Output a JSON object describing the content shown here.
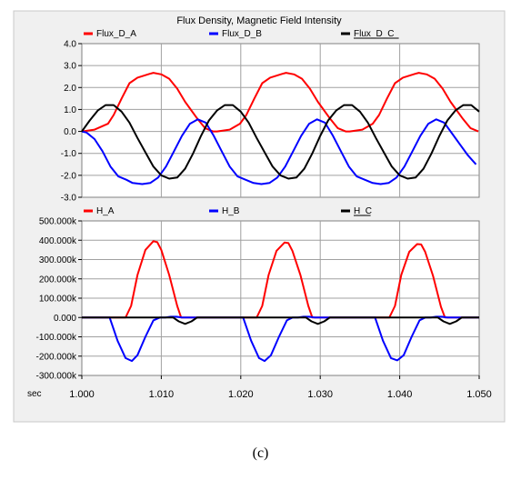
{
  "window": {
    "title": "Flux Density,  Magnetic Field Intensity",
    "x_unit": "sec",
    "caption": "(c)"
  },
  "colors": {
    "frame_bg": "#f0f0f0",
    "panel_bg": "#ffffff",
    "grid": "#a0a0a0",
    "phase_a": "#ff0000",
    "phase_b": "#0000ff",
    "phase_c": "#000000"
  },
  "chart_data": [
    {
      "type": "line",
      "title": "",
      "xlabel": "sec",
      "ylabel": "",
      "xlim": [
        1.0,
        1.05
      ],
      "ylim": [
        -3.0,
        4.0
      ],
      "yticks": [
        "4.0",
        "3.0",
        "2.0",
        "1.0",
        "0.0",
        "-1.0",
        "-2.0",
        "-3.0"
      ],
      "xticks": [
        "1.000",
        "1.010",
        "1.020",
        "1.030",
        "1.040",
        "1.050"
      ],
      "grid": true,
      "legend": "top",
      "series": [
        {
          "name": "Flux_D_A",
          "color": "#ff0000",
          "x": [
            1.0,
            1.0016,
            1.0033,
            1.004,
            1.005,
            1.006,
            1.007,
            1.0085,
            1.009,
            1.01,
            1.011,
            1.012,
            1.013,
            1.0145,
            1.0155,
            1.0165,
            1.017,
            1.0186,
            1.0199,
            1.0207,
            1.0217,
            1.0227,
            1.0237,
            1.0252,
            1.0257,
            1.0267,
            1.0277,
            1.0287,
            1.0297,
            1.0312,
            1.0322,
            1.0332,
            1.0337,
            1.0353,
            1.0366,
            1.0374,
            1.0384,
            1.0394,
            1.0404,
            1.0419,
            1.0424,
            1.0434,
            1.0444,
            1.0454,
            1.0464,
            1.0479,
            1.0489,
            1.0499
          ],
          "y": [
            0.0,
            0.08,
            0.35,
            0.75,
            1.5,
            2.2,
            2.45,
            2.62,
            2.67,
            2.6,
            2.4,
            1.95,
            1.35,
            0.6,
            0.15,
            0.0,
            0.0,
            0.08,
            0.35,
            0.75,
            1.5,
            2.2,
            2.45,
            2.62,
            2.67,
            2.6,
            2.4,
            1.95,
            1.35,
            0.6,
            0.15,
            0.0,
            0.0,
            0.08,
            0.35,
            0.75,
            1.5,
            2.2,
            2.45,
            2.62,
            2.67,
            2.6,
            2.4,
            1.95,
            1.35,
            0.6,
            0.15,
            0.0
          ]
        },
        {
          "name": "Flux_D_B",
          "color": "#0000ff",
          "x": [
            1.0,
            1.0006,
            1.0016,
            1.0026,
            1.0036,
            1.0046,
            1.0056,
            1.0064,
            1.0076,
            1.0086,
            1.0096,
            1.0106,
            1.0116,
            1.0126,
            1.0136,
            1.0146,
            1.0156,
            1.0166,
            1.0176,
            1.0186,
            1.0196,
            1.0206,
            1.0216,
            1.0226,
            1.0236,
            1.0246,
            1.0256,
            1.0266,
            1.0276,
            1.0286,
            1.0296,
            1.0306,
            1.0316,
            1.0326,
            1.0336,
            1.0346,
            1.0356,
            1.0366,
            1.0376,
            1.0386,
            1.0396,
            1.0406,
            1.0416,
            1.0426,
            1.0436,
            1.0446,
            1.0456,
            1.0466,
            1.0476,
            1.0486,
            1.0496
          ],
          "y": [
            0.0,
            -0.05,
            -0.35,
            -0.9,
            -1.6,
            -2.05,
            -2.2,
            -2.35,
            -2.4,
            -2.35,
            -2.1,
            -1.6,
            -0.9,
            -0.2,
            0.35,
            0.55,
            0.4,
            -0.2,
            -0.9,
            -1.6,
            -2.05,
            -2.2,
            -2.35,
            -2.4,
            -2.35,
            -2.1,
            -1.6,
            -0.9,
            -0.2,
            0.35,
            0.55,
            0.4,
            -0.2,
            -0.9,
            -1.6,
            -2.05,
            -2.2,
            -2.35,
            -2.4,
            -2.35,
            -2.1,
            -1.6,
            -0.9,
            -0.2,
            0.35,
            0.55,
            0.4,
            -0.1,
            -0.6,
            -1.1,
            -1.5
          ]
        },
        {
          "name": "Flux_D_C",
          "color": "#000000",
          "x": [
            1.0,
            1.001,
            1.002,
            1.003,
            1.004,
            1.005,
            1.006,
            1.007,
            1.008,
            1.009,
            1.01,
            1.011,
            1.012,
            1.013,
            1.014,
            1.015,
            1.016,
            1.017,
            1.018,
            1.019,
            1.02,
            1.021,
            1.022,
            1.023,
            1.024,
            1.025,
            1.026,
            1.027,
            1.028,
            1.029,
            1.03,
            1.031,
            1.032,
            1.033,
            1.034,
            1.035,
            1.036,
            1.037,
            1.038,
            1.039,
            1.04,
            1.041,
            1.042,
            1.043,
            1.044,
            1.045,
            1.046,
            1.047,
            1.048,
            1.049,
            1.05
          ],
          "y": [
            0.0,
            0.5,
            0.95,
            1.2,
            1.2,
            0.9,
            0.4,
            -0.3,
            -0.95,
            -1.6,
            -2.0,
            -2.15,
            -2.1,
            -1.7,
            -1.0,
            -0.2,
            0.5,
            0.95,
            1.2,
            1.2,
            0.9,
            0.4,
            -0.3,
            -0.95,
            -1.6,
            -2.0,
            -2.15,
            -2.1,
            -1.7,
            -1.0,
            -0.2,
            0.5,
            0.95,
            1.2,
            1.2,
            0.9,
            0.4,
            -0.3,
            -0.95,
            -1.6,
            -2.0,
            -2.15,
            -2.1,
            -1.7,
            -1.0,
            -0.2,
            0.5,
            0.95,
            1.2,
            1.2,
            0.9
          ]
        }
      ]
    },
    {
      "type": "line",
      "title": "",
      "xlabel": "sec",
      "ylabel": "",
      "xlim": [
        1.0,
        1.05
      ],
      "ylim": [
        -300000,
        500000
      ],
      "yticks": [
        "500.000k",
        "400.000k",
        "300.000k",
        "200.000k",
        "100.000k",
        "0.000",
        "-100.000k",
        "-200.000k",
        "-300.000k"
      ],
      "xticks": [
        "1.000",
        "1.010",
        "1.020",
        "1.030",
        "1.040",
        "1.050"
      ],
      "grid": true,
      "legend": "top",
      "series": [
        {
          "name": "H_A",
          "color": "#ff0000",
          "x": [
            1.0,
            1.0055,
            1.0062,
            1.007,
            1.008,
            1.009,
            1.0095,
            1.01,
            1.011,
            1.012,
            1.0125,
            1.022,
            1.0227,
            1.0235,
            1.0245,
            1.0255,
            1.026,
            1.0265,
            1.0275,
            1.0285,
            1.029,
            1.0387,
            1.0394,
            1.0402,
            1.0412,
            1.0422,
            1.0427,
            1.0432,
            1.0442,
            1.0452,
            1.0457,
            1.05
          ],
          "y": [
            0,
            0,
            60000,
            220000,
            350000,
            395000,
            390000,
            350000,
            220000,
            60000,
            0,
            0,
            60000,
            220000,
            345000,
            388000,
            385000,
            345000,
            220000,
            60000,
            0,
            0,
            60000,
            220000,
            340000,
            380000,
            378000,
            340000,
            215000,
            55000,
            0,
            0
          ]
        },
        {
          "name": "H_B",
          "color": "#0000ff",
          "x": [
            1.0,
            1.0035,
            1.0045,
            1.0055,
            1.0063,
            1.007,
            1.008,
            1.009,
            1.0098,
            1.0105,
            1.0112,
            1.0119,
            1.0126,
            1.0203,
            1.0213,
            1.0223,
            1.023,
            1.0238,
            1.0248,
            1.0258,
            1.0265,
            1.0272,
            1.0279,
            1.0286,
            1.0293,
            1.0369,
            1.0379,
            1.0389,
            1.0397,
            1.0405,
            1.0415,
            1.0425,
            1.0432,
            1.0439,
            1.0446,
            1.0453,
            1.046,
            1.05
          ],
          "y": [
            0,
            0,
            -120000,
            -210000,
            -225000,
            -195000,
            -100000,
            -15000,
            0,
            0,
            4000,
            4000,
            0,
            0,
            -120000,
            -210000,
            -225000,
            -195000,
            -100000,
            -15000,
            0,
            0,
            4000,
            4000,
            0,
            0,
            -120000,
            -210000,
            -222000,
            -195000,
            -100000,
            -15000,
            0,
            0,
            4000,
            4000,
            0,
            0
          ]
        },
        {
          "name": "H_C",
          "color": "#000000",
          "x": [
            1.0,
            1.0115,
            1.0122,
            1.013,
            1.0138,
            1.0145,
            1.0282,
            1.0289,
            1.0297,
            1.0305,
            1.0312,
            1.0448,
            1.0455,
            1.0463,
            1.0471,
            1.0478,
            1.05
          ],
          "y": [
            0,
            0,
            -20000,
            -33000,
            -20000,
            0,
            0,
            -20000,
            -33000,
            -20000,
            0,
            0,
            -20000,
            -33000,
            -20000,
            0,
            0
          ]
        }
      ]
    }
  ]
}
